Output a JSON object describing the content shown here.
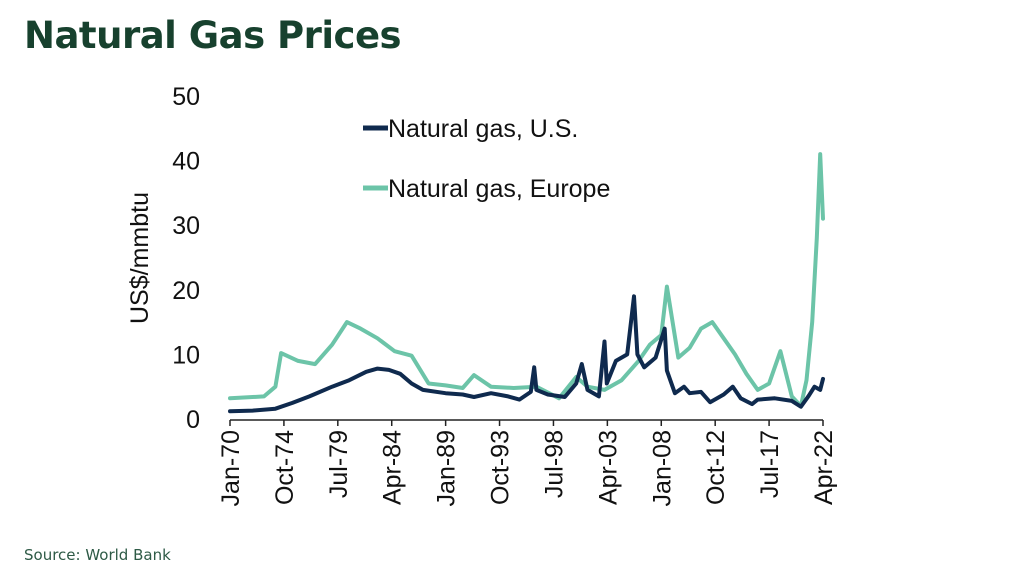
{
  "slide": {
    "title": "Natural Gas Prices",
    "source": "Source: World Bank"
  },
  "colors": {
    "title": "#17412e",
    "us": "#0f2a4e",
    "europe": "#6cc4a8",
    "axis": "#222222"
  },
  "chart_data": {
    "type": "line",
    "ylabel": "US$/mmbtu",
    "xlabel": "",
    "ylim": [
      0,
      50
    ],
    "yticks": [
      0,
      10,
      20,
      30,
      40,
      50
    ],
    "x_tick_labels": [
      "Jan-70",
      "Oct-74",
      "Jul-79",
      "Apr-84",
      "Jan-89",
      "Oct-93",
      "Jul-98",
      "Apr-03",
      "Jan-08",
      "Oct-12",
      "Jul-17",
      "Apr-22"
    ],
    "x_range": [
      1970.0,
      2022.25
    ],
    "legend_position": "top-center",
    "grid": false,
    "series": [
      {
        "name": "Natural gas, U.S.",
        "x": [
          1970.0,
          1972.0,
          1974.0,
          1975.5,
          1977.0,
          1979.0,
          1980.5,
          1982.0,
          1983.0,
          1984.0,
          1985.0,
          1986.0,
          1987.0,
          1989.0,
          1990.5,
          1991.5,
          1993.0,
          1994.5,
          1995.5,
          1996.5,
          1996.8,
          1997.0,
          1998.0,
          1999.5,
          2000.5,
          2001.0,
          2001.5,
          2002.5,
          2003.0,
          2003.2,
          2004.0,
          2005.0,
          2005.6,
          2005.9,
          2006.5,
          2007.5,
          2008.3,
          2008.5,
          2009.2,
          2010.0,
          2010.5,
          2011.5,
          2012.3,
          2013.5,
          2014.3,
          2015.0,
          2016.0,
          2016.5,
          2018.0,
          2019.5,
          2020.3,
          2021.0,
          2021.5,
          2022.0,
          2022.25
        ],
        "y": [
          1.2,
          1.3,
          1.6,
          2.5,
          3.5,
          5.0,
          6.0,
          7.3,
          7.8,
          7.6,
          7.0,
          5.5,
          4.5,
          4.0,
          3.8,
          3.4,
          4.0,
          3.5,
          3.0,
          4.2,
          8.0,
          4.5,
          3.8,
          3.4,
          5.5,
          8.5,
          4.5,
          3.5,
          12.0,
          5.5,
          9.0,
          10.0,
          19.0,
          10.0,
          8.0,
          9.5,
          14.0,
          7.5,
          4.0,
          5.0,
          4.0,
          4.2,
          2.6,
          3.8,
          5.0,
          3.2,
          2.3,
          3.0,
          3.2,
          2.8,
          1.9,
          3.6,
          5.0,
          4.5,
          6.2
        ]
      },
      {
        "name": "Natural gas, Europe",
        "x": [
          1970.0,
          1973.0,
          1974.0,
          1974.5,
          1976.0,
          1977.5,
          1979.0,
          1980.3,
          1981.5,
          1983.0,
          1984.5,
          1986.0,
          1987.5,
          1989.0,
          1990.5,
          1991.5,
          1993.0,
          1995.0,
          1997.0,
          1999.0,
          2000.5,
          2001.5,
          2003.0,
          2004.5,
          2006.0,
          2007.0,
          2008.0,
          2008.5,
          2009.5,
          2010.5,
          2011.5,
          2012.5,
          2013.5,
          2014.5,
          2015.5,
          2016.5,
          2017.5,
          2018.5,
          2019.5,
          2020.3,
          2020.8,
          2021.3,
          2021.7,
          2022.0,
          2022.25
        ],
        "y": [
          3.2,
          3.5,
          5.0,
          10.2,
          9.0,
          8.5,
          11.5,
          15.0,
          14.0,
          12.5,
          10.5,
          9.8,
          5.5,
          5.2,
          4.8,
          6.8,
          5.0,
          4.8,
          5.0,
          3.2,
          6.5,
          5.0,
          4.5,
          6.0,
          9.0,
          11.5,
          13.0,
          20.5,
          9.5,
          11.0,
          14.0,
          15.0,
          12.5,
          10.0,
          7.0,
          4.5,
          5.5,
          10.5,
          3.5,
          2.0,
          6.0,
          15.0,
          28.0,
          41.0,
          31.0
        ]
      }
    ]
  }
}
